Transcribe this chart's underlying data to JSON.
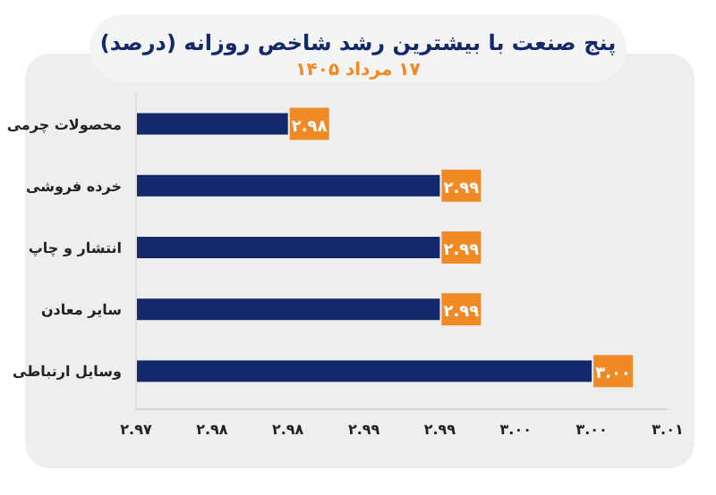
{
  "chart_data": {
    "type": "bar",
    "orientation": "horizontal",
    "title": "پنج صنعت با بیشترین رشد شاخص روزانه (درصد)",
    "subtitle": "۱۷ مرداد ۱۴۰۵",
    "categories": [
      "محصولات چرمی",
      "خرده فروشی",
      "انتشار و چاپ",
      "سایر معادن",
      "وسایل ارتباطی"
    ],
    "values": [
      2.98,
      2.99,
      2.99,
      2.99,
      3.0
    ],
    "value_labels": [
      "۲.۹۸",
      "۲.۹۹",
      "۲.۹۹",
      "۲.۹۹",
      "۳.۰۰"
    ],
    "color": "#14296b",
    "xlim": [
      2.97,
      3.005
    ],
    "xticks": [
      {
        "value": 2.97,
        "label": "۲.۹۷"
      },
      {
        "value": 2.975,
        "label": "۲.۹۸"
      },
      {
        "value": 2.98,
        "label": "۲.۹۸"
      },
      {
        "value": 2.985,
        "label": "۲.۹۹"
      },
      {
        "value": 2.99,
        "label": "۲.۹۹"
      },
      {
        "value": 2.995,
        "label": "۳.۰۰"
      },
      {
        "value": 3.0,
        "label": "۳.۰۰"
      },
      {
        "value": 3.005,
        "label": "۳.۰۱"
      }
    ],
    "grid": false
  }
}
